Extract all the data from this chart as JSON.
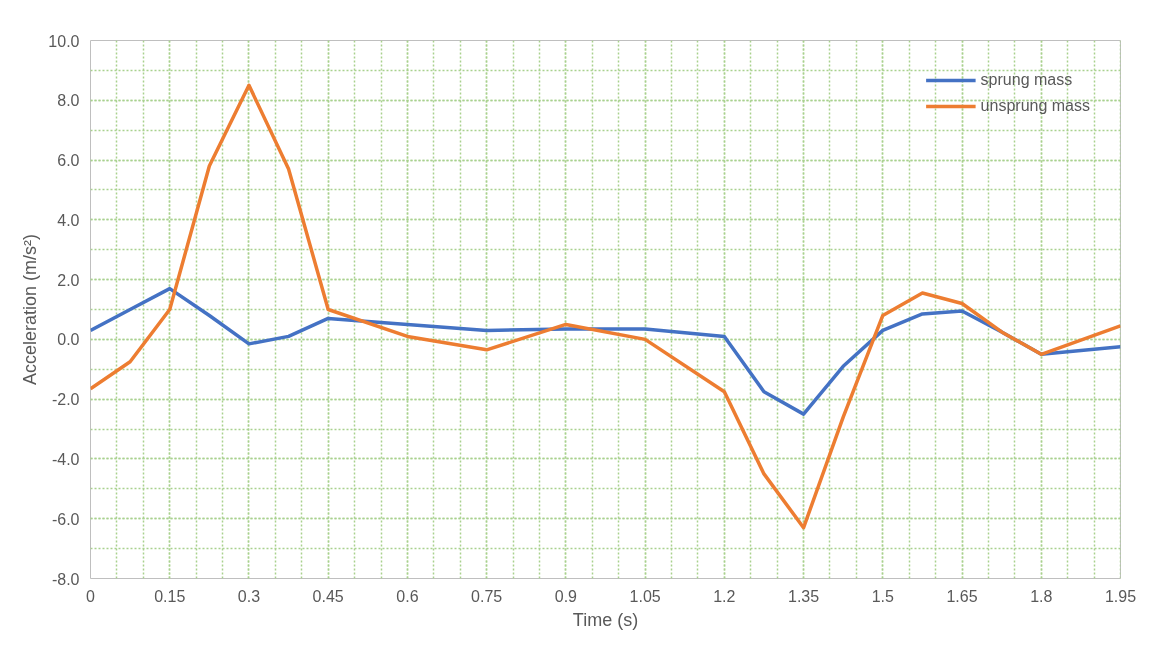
{
  "chart_data": {
    "type": "line",
    "xlabel": "Time (s)",
    "ylabel": "Acceleration (m/s²)",
    "xlim": [
      0,
      1.95
    ],
    "xticks": [
      0,
      0.15,
      0.3,
      0.45,
      0.6,
      0.75,
      0.9,
      1.05,
      1.2,
      1.35,
      1.5,
      1.65,
      1.8,
      1.95
    ],
    "ylim": [
      -8,
      10
    ],
    "yticks": [
      {
        "value": -8,
        "label": "-8.0"
      },
      {
        "value": -6,
        "label": "-6.0"
      },
      {
        "value": -4,
        "label": "-4.0"
      },
      {
        "value": -2,
        "label": "-2.0"
      },
      {
        "value": 0,
        "label": "0.0"
      },
      {
        "value": 2,
        "label": "2.0"
      },
      {
        "value": 4,
        "label": "4.0"
      },
      {
        "value": 6,
        "label": "6.0"
      },
      {
        "value": 8,
        "label": "8.0"
      },
      {
        "value": 10,
        "label": "10.0"
      }
    ],
    "grid": true,
    "legend": "top right",
    "line_style": "solid",
    "marker": "none",
    "series": [
      {
        "name": "sprung mass",
        "color": "#4472c4",
        "x": [
          0,
          0.075,
          0.15,
          0.225,
          0.3,
          0.375,
          0.45,
          0.6,
          0.75,
          0.9,
          1.05,
          1.2,
          1.275,
          1.35,
          1.425,
          1.5,
          1.575,
          1.65,
          1.725,
          1.8,
          1.95
        ],
        "values": [
          0.3,
          1.0,
          1.7,
          0.8,
          -0.15,
          0.1,
          0.7,
          0.5,
          0.3,
          0.35,
          0.35,
          0.1,
          -1.75,
          -2.5,
          -0.9,
          0.3,
          0.85,
          0.95,
          0.25,
          -0.5,
          -0.25
        ]
      },
      {
        "name": "unsprung mass",
        "color": "#ed7d31",
        "x": [
          0,
          0.075,
          0.15,
          0.225,
          0.3,
          0.375,
          0.45,
          0.6,
          0.75,
          0.9,
          1.05,
          1.2,
          1.275,
          1.35,
          1.425,
          1.5,
          1.575,
          1.65,
          1.725,
          1.8,
          1.95
        ],
        "values": [
          -1.65,
          -0.75,
          1.0,
          5.8,
          8.5,
          5.7,
          1.0,
          0.1,
          -0.35,
          0.5,
          0.0,
          -1.75,
          -4.5,
          -6.3,
          -2.6,
          0.8,
          1.55,
          1.2,
          0.25,
          -0.5,
          0.45
        ]
      }
    ]
  }
}
